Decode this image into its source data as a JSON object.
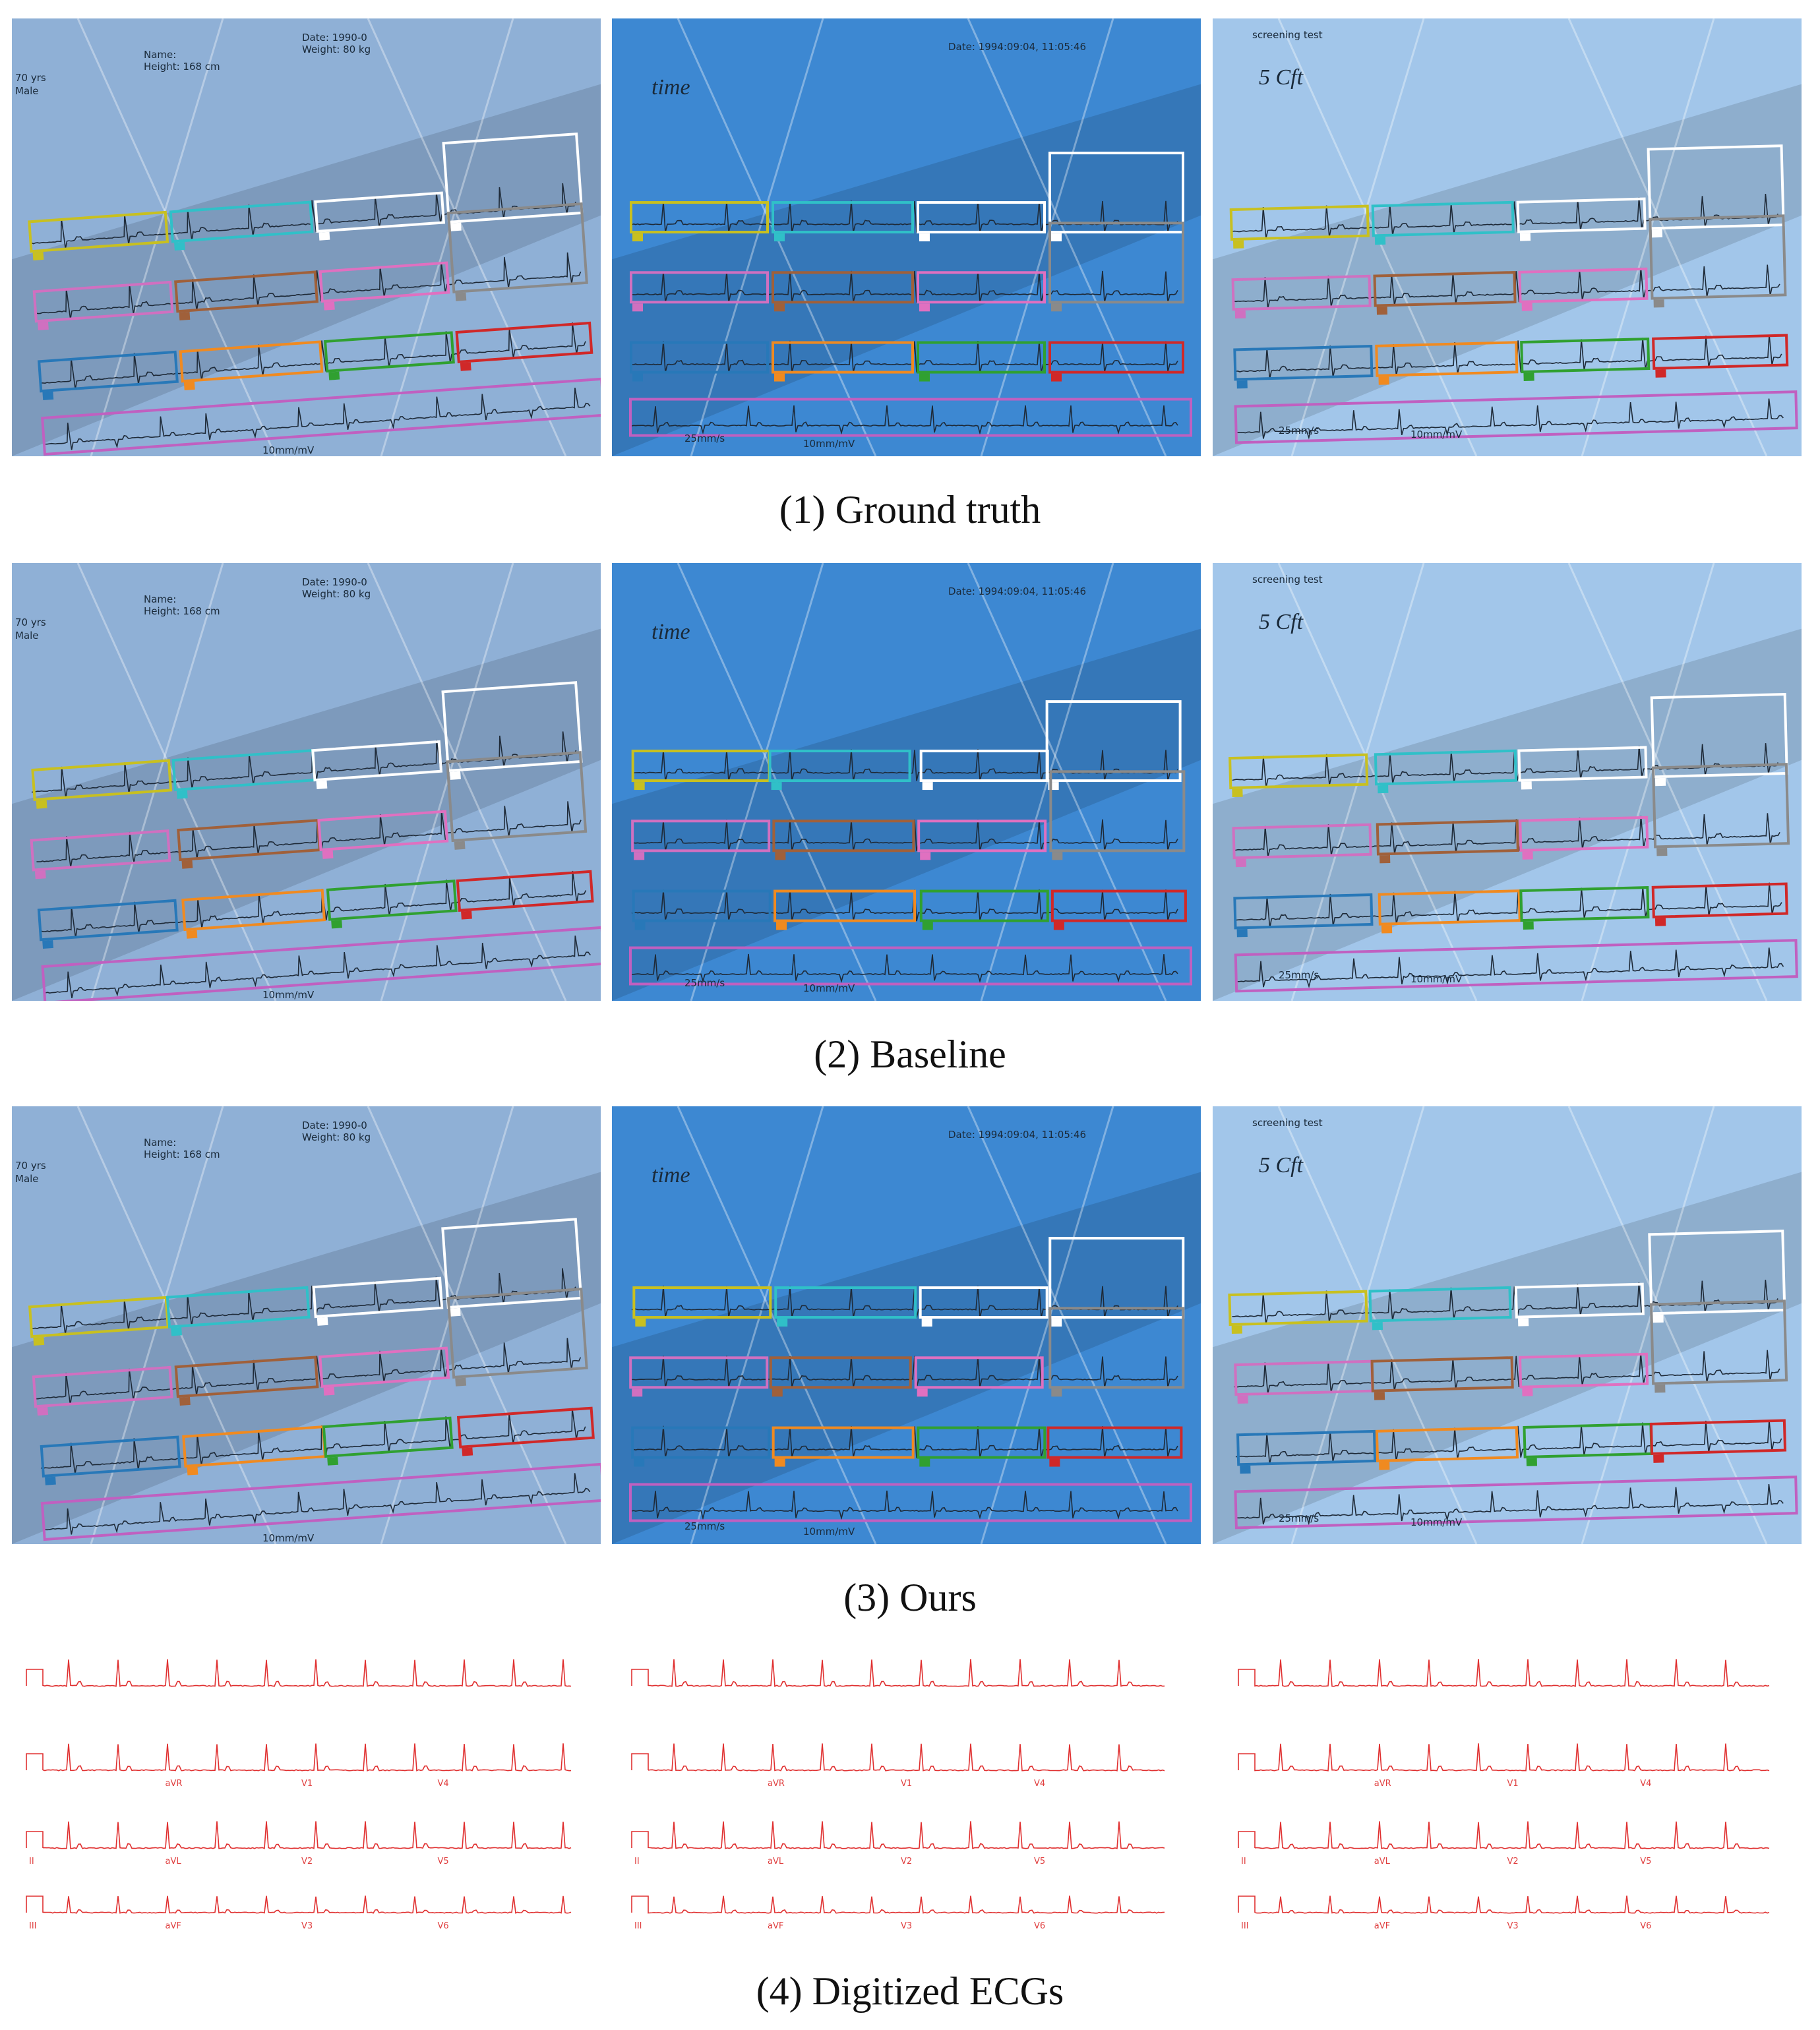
{
  "photos": [
    {
      "texts": [
        "Name:",
        "Height: 168 cm",
        "Date: 1990-0",
        "Weight: 80 kg",
        "70 yrs",
        "Male",
        "10mm/mV"
      ]
    },
    {
      "texts": [
        "Date: 1994:09:04, 11:05:46",
        "time",
        "25mm/s",
        "10mm/mV"
      ]
    },
    {
      "texts": [
        "screening test",
        "5 Cft",
        "25mm/s",
        "10mm/mV"
      ]
    }
  ],
  "rows": [
    {
      "caption": "(1) Ground truth"
    },
    {
      "caption": "(2) Baseline"
    },
    {
      "caption": "(3) Ours"
    }
  ],
  "digitized": {
    "caption": "(4) Digitized ECGs",
    "leads": [
      [
        "aVR",
        "V1",
        "V4"
      ],
      [
        "II",
        "aVL",
        "V2",
        "V5"
      ],
      [
        "III",
        "aVF",
        "V3",
        "V6"
      ]
    ]
  }
}
